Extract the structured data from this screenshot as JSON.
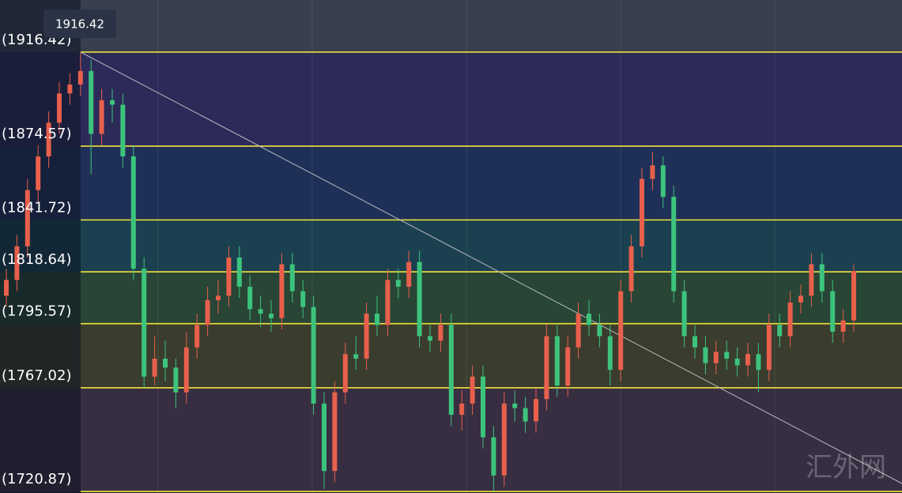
{
  "chart_data": {
    "type": "candlestick",
    "ylim": [
      1720.2,
      1939.6
    ],
    "up_color": "#e8604c",
    "down_color": "#3cc47c",
    "level_color": "#f2e23c",
    "band_colors": [
      "#3a3f4e",
      "#2c2a58",
      "#1f3058",
      "#1b4150",
      "#284536",
      "#3a3c2e",
      "#382e42"
    ],
    "levels": [
      {
        "value": 1916.42,
        "label": "(1916.42)"
      },
      {
        "value": 1874.57,
        "label": "(1874.57)"
      },
      {
        "value": 1841.72,
        "label": "(1841.72)"
      },
      {
        "value": 1818.64,
        "label": "(1818.64)"
      },
      {
        "value": 1795.57,
        "label": "(1795.57)"
      },
      {
        "value": 1767.02,
        "label": "(1767.02)"
      },
      {
        "value": 1720.87,
        "label": "(1720.87)"
      }
    ],
    "high_label": {
      "value": 1916.42,
      "label": "1916.42"
    },
    "watermark": "汇外网",
    "open": [
      1808,
      1815,
      1830,
      1855,
      1870,
      1885,
      1898,
      1902,
      1908,
      1880,
      1895,
      1893,
      1870,
      1820,
      1772,
      1780,
      1776,
      1765,
      1785,
      1795,
      1806,
      1808,
      1825,
      1812,
      1802,
      1800,
      1798,
      1822,
      1810,
      1803,
      1760,
      1730,
      1765,
      1782,
      1780,
      1800,
      1795,
      1815,
      1812,
      1823,
      1790,
      1788,
      1795,
      1755,
      1760,
      1772,
      1745,
      1728,
      1760,
      1758,
      1752,
      1762,
      1790,
      1768,
      1785,
      1800,
      1795,
      1790,
      1775,
      1810,
      1830,
      1860,
      1866,
      1852,
      1810,
      1790,
      1785,
      1778,
      1783,
      1780,
      1777,
      1782,
      1775,
      1795,
      1790,
      1805,
      1808,
      1822,
      1810,
      1792,
      1797
    ],
    "high": [
      1820,
      1835,
      1860,
      1875,
      1890,
      1903,
      1907,
      1916.42,
      1913,
      1900,
      1900,
      1898,
      1875,
      1825,
      1790,
      1788,
      1780,
      1792,
      1800,
      1812,
      1815,
      1830,
      1830,
      1817,
      1808,
      1806,
      1827,
      1827,
      1815,
      1808,
      1765,
      1770,
      1787,
      1790,
      1805,
      1808,
      1820,
      1820,
      1828,
      1828,
      1795,
      1800,
      1800,
      1766,
      1777,
      1777,
      1750,
      1765,
      1766,
      1763,
      1767,
      1795,
      1795,
      1790,
      1805,
      1806,
      1800,
      1795,
      1815,
      1835,
      1865,
      1872,
      1870,
      1857,
      1815,
      1795,
      1790,
      1788,
      1788,
      1785,
      1787,
      1787,
      1800,
      1800,
      1810,
      1813,
      1827,
      1827,
      1815,
      1802,
      1822
    ],
    "low": [
      1803,
      1810,
      1825,
      1850,
      1865,
      1880,
      1893,
      1897,
      1862,
      1875,
      1885,
      1865,
      1815,
      1767,
      1768,
      1770,
      1758,
      1760,
      1780,
      1790,
      1800,
      1803,
      1807,
      1797,
      1794,
      1792,
      1793,
      1805,
      1798,
      1755,
      1722,
      1725,
      1760,
      1775,
      1775,
      1790,
      1790,
      1807,
      1807,
      1785,
      1783,
      1783,
      1750,
      1748,
      1755,
      1740,
      1721,
      1723,
      1752,
      1747,
      1747,
      1757,
      1763,
      1763,
      1780,
      1790,
      1785,
      1768,
      1770,
      1805,
      1825,
      1855,
      1847,
      1805,
      1785,
      1780,
      1773,
      1773,
      1775,
      1772,
      1772,
      1765,
      1770,
      1785,
      1785,
      1800,
      1803,
      1805,
      1787,
      1787,
      1792
    ],
    "close": [
      1815,
      1830,
      1855,
      1870,
      1885,
      1898,
      1902,
      1908,
      1880,
      1895,
      1893,
      1870,
      1820,
      1772,
      1780,
      1776,
      1765,
      1785,
      1795,
      1806,
      1808,
      1825,
      1812,
      1802,
      1800,
      1798,
      1822,
      1810,
      1803,
      1760,
      1730,
      1765,
      1782,
      1780,
      1800,
      1795,
      1815,
      1812,
      1823,
      1790,
      1788,
      1795,
      1755,
      1760,
      1772,
      1745,
      1728,
      1760,
      1758,
      1752,
      1762,
      1790,
      1768,
      1785,
      1800,
      1795,
      1790,
      1775,
      1810,
      1830,
      1860,
      1866,
      1852,
      1810,
      1790,
      1785,
      1778,
      1783,
      1780,
      1777,
      1782,
      1775,
      1795,
      1790,
      1805,
      1808,
      1822,
      1810,
      1792,
      1797,
      1819
    ]
  }
}
